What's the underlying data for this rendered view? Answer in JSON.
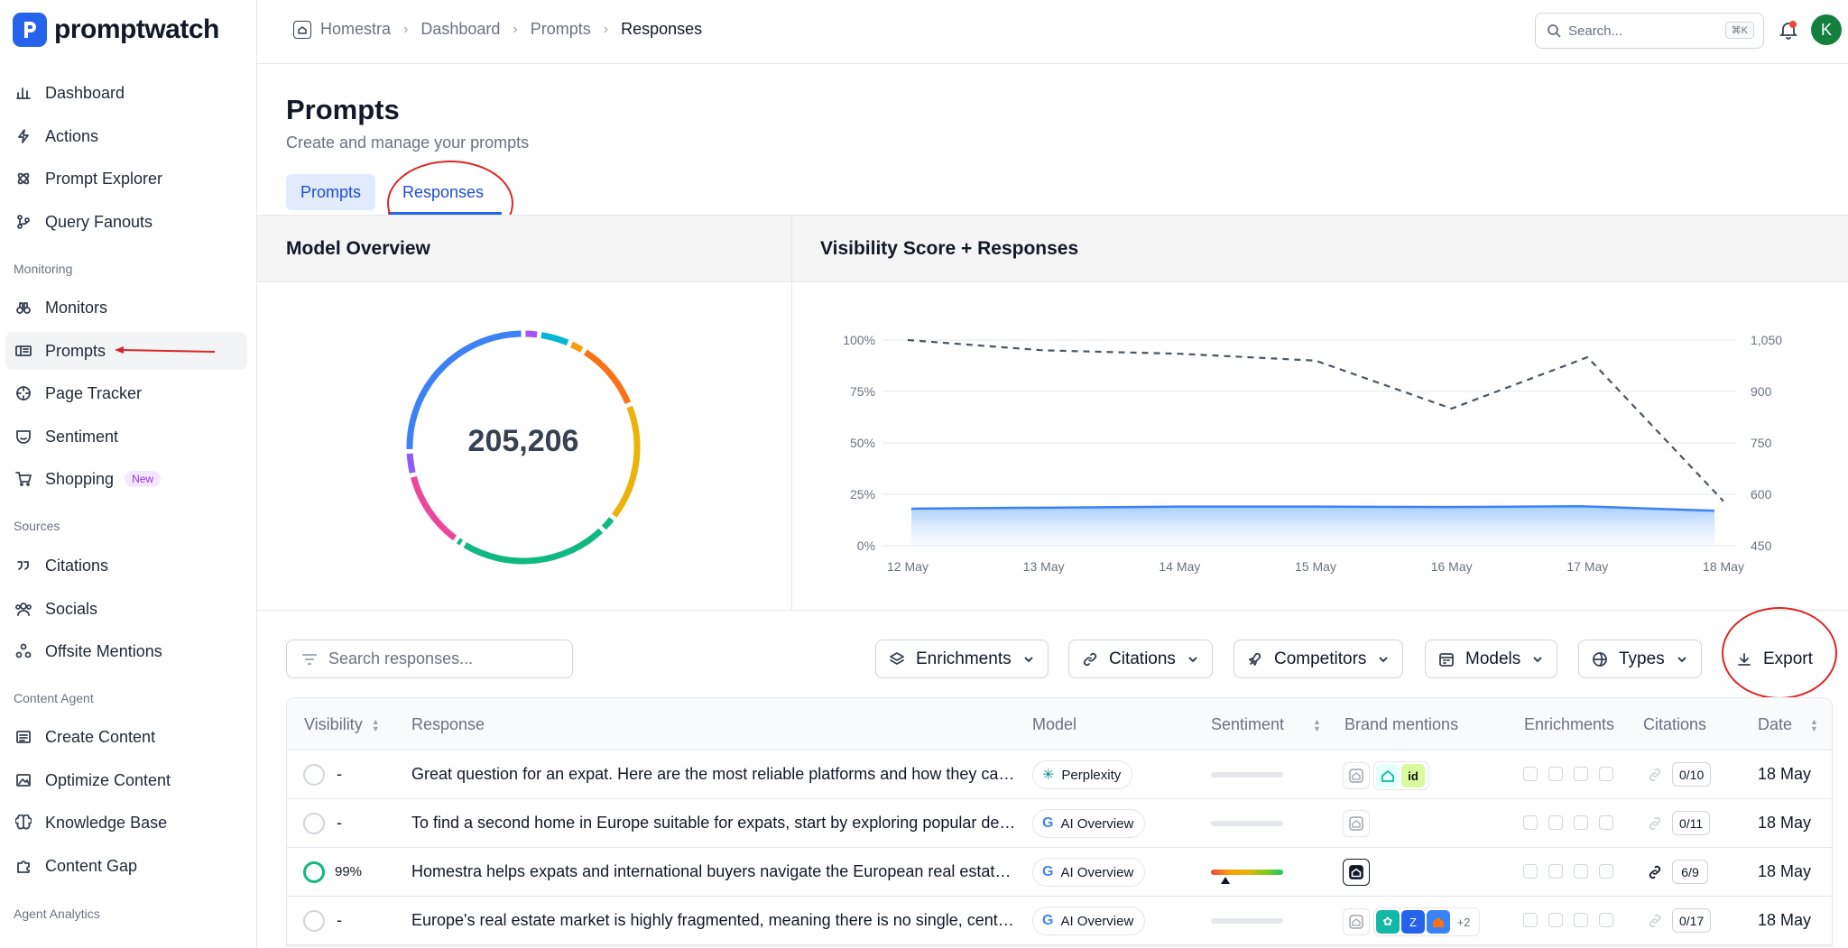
{
  "brand": {
    "name": "promptwatch"
  },
  "sidebar": {
    "items": [
      {
        "label": "Dashboard",
        "icon": "bar-chart-icon"
      },
      {
        "label": "Actions",
        "icon": "lightning-icon"
      },
      {
        "label": "Prompt Explorer",
        "icon": "atom-icon"
      },
      {
        "label": "Query Fanouts",
        "icon": "branch-icon"
      }
    ],
    "monitoring_label": "Monitoring",
    "monitoring": [
      {
        "label": "Monitors",
        "icon": "binoculars-icon"
      },
      {
        "label": "Prompts",
        "icon": "prompts-icon",
        "active": true
      },
      {
        "label": "Page Tracker",
        "icon": "target-icon"
      },
      {
        "label": "Sentiment",
        "icon": "mask-icon"
      },
      {
        "label": "Shopping",
        "icon": "cart-icon",
        "badge": "New"
      }
    ],
    "sources_label": "Sources",
    "sources": [
      {
        "label": "Citations",
        "icon": "quote-icon"
      },
      {
        "label": "Socials",
        "icon": "users-icon"
      },
      {
        "label": "Offsite Mentions",
        "icon": "network-icon"
      }
    ],
    "content_label": "Content Agent",
    "content": [
      {
        "label": "Create Content",
        "icon": "list-icon"
      },
      {
        "label": "Optimize Content",
        "icon": "image-edit-icon"
      },
      {
        "label": "Knowledge Base",
        "icon": "brain-icon"
      },
      {
        "label": "Content Gap",
        "icon": "puzzle-icon"
      }
    ],
    "analytics_label": "Agent Analytics"
  },
  "topbar": {
    "breadcrumbs": [
      "Homestra",
      "Dashboard",
      "Prompts",
      "Responses"
    ],
    "search_placeholder": "Search...",
    "search_kbd": "⌘K",
    "avatar_initial": "K"
  },
  "header": {
    "title": "Prompts",
    "subtitle": "Create and manage your prompts",
    "tabs": [
      "Prompts",
      "Responses"
    ]
  },
  "panels": {
    "model_overview": "Model Overview",
    "visibility": "Visibility Score + Responses",
    "total_responses": "205,206"
  },
  "chart_data": {
    "type": "line",
    "categories": [
      "12 May",
      "13 May",
      "14 May",
      "15 May",
      "16 May",
      "17 May",
      "18 May"
    ],
    "series": [
      {
        "values": [
          18,
          18.5,
          19,
          19,
          18.8,
          19.2,
          17
        ],
        "axis": "left",
        "style": "solid-area",
        "color": "#3b82f6"
      },
      {
        "values": [
          1050,
          1020,
          1010,
          990,
          850,
          1000,
          580
        ],
        "axis": "right",
        "style": "dashed",
        "color": "#4b5563"
      }
    ],
    "y_left_ticks": [
      "0%",
      "25%",
      "50%",
      "75%",
      "100%"
    ],
    "y_left_range": [
      0,
      100
    ],
    "y_right_ticks": [
      "450",
      "600",
      "750",
      "900",
      "1,050"
    ],
    "y_right_range": [
      450,
      1050
    ],
    "grid": true
  },
  "donut": {
    "segments": [
      {
        "color": "#a855f7",
        "value": 2
      },
      {
        "color": "#06b6d4",
        "value": 4
      },
      {
        "color": "#f59e0b",
        "value": 2
      },
      {
        "color": "#f97316",
        "value": 9
      },
      {
        "color": "#eab308",
        "value": 15
      },
      {
        "color": "#10b981",
        "value": 2
      },
      {
        "color": "#10b981",
        "value": 19
      },
      {
        "color": "#10b981",
        "value": 1
      },
      {
        "color": "#ec4899",
        "value": 10
      },
      {
        "color": "#8b5cf6",
        "value": 3
      },
      {
        "color": "#3b82f6",
        "value": 23
      }
    ]
  },
  "toolbar": {
    "search_placeholder": "Search responses...",
    "filters": [
      "Enrichments",
      "Citations",
      "Competitors",
      "Models",
      "Types"
    ],
    "export": "Export"
  },
  "table": {
    "headers": [
      "Visibility",
      "Response",
      "Model",
      "Sentiment",
      "Brand mentions",
      "Enrichments",
      "Citations",
      "Date"
    ],
    "rows": [
      {
        "visibility": "-",
        "response": "Great question for an expat. Here are the most reliable platforms and how they can help you find properties...",
        "model": "Perplexity",
        "citations": "0/10",
        "date": "18 May"
      },
      {
        "visibility": "-",
        "response": "To find a second home in Europe suitable for expats, start by exploring popular destinations and local listings...",
        "model": "AI Overview",
        "citations": "0/11",
        "date": "18 May"
      },
      {
        "visibility": "99%",
        "response": "Homestra helps expats and international buyers navigate the European real estate market with ease...",
        "model": "AI Overview",
        "citations": "6/9",
        "date": "18 May"
      },
      {
        "visibility": "-",
        "response": "Europe's real estate market is highly fragmented, meaning there is no single, centralized listing portal...",
        "model": "AI Overview",
        "citations": "0/17",
        "date": "18 May",
        "brand_more": "+2"
      }
    ]
  },
  "colors": {
    "accent": "#2563eb",
    "annotation": "#dc2626"
  }
}
